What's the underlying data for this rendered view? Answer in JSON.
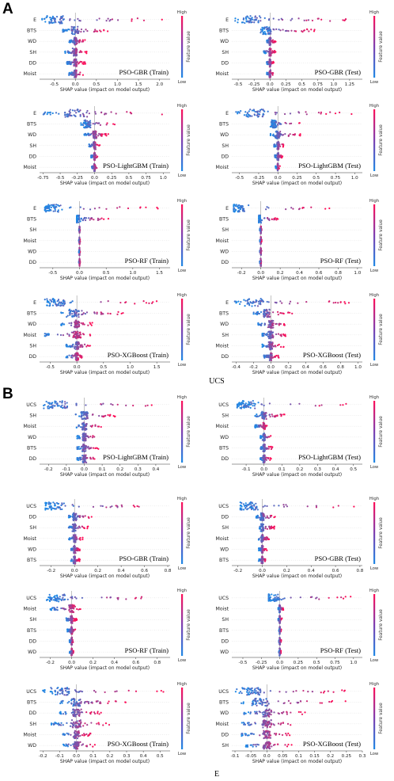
{
  "figure": {
    "sections": [
      {
        "letter": "A",
        "target_label": "UCS"
      },
      {
        "letter": "B",
        "target_label": "E"
      }
    ],
    "x_axis_label": "SHAP value (impact on model output)",
    "colorbar": {
      "high": "High",
      "low": "Low",
      "title": "Feature value"
    },
    "colors": {
      "low": "#1e88e5",
      "high": "#ff0d57",
      "zero_line": "#999999",
      "grid": "#dddddd"
    }
  },
  "chart_data": [
    {
      "type": "scatter",
      "title": "PSO-GBR (Train)",
      "features": [
        "E",
        "BTS",
        "WD",
        "SH",
        "DD",
        "Moist"
      ],
      "xticks": [
        -0.5,
        0.0,
        0.5,
        1.0,
        1.5,
        2.0
      ],
      "xlim": [
        -0.85,
        2.25
      ],
      "series": [
        {
          "min": -0.8,
          "max": 2.1,
          "mode": -0.5
        },
        {
          "min": -0.3,
          "max": 0.8,
          "mode": 0.0
        },
        {
          "min": -0.15,
          "max": 0.25,
          "mode": 0.0
        },
        {
          "min": -0.25,
          "max": 0.3,
          "mode": 0.0
        },
        {
          "min": -0.2,
          "max": 0.25,
          "mode": 0.0
        },
        {
          "min": -0.15,
          "max": 0.2,
          "mode": 0.0
        }
      ]
    },
    {
      "type": "scatter",
      "title": "PSO-GBR (Test)",
      "features": [
        "E",
        "BTS",
        "WD",
        "SH",
        "DD",
        "Moist"
      ],
      "xticks": [
        -0.5,
        -0.25,
        0.0,
        0.25,
        0.5,
        0.75,
        1.0,
        1.25
      ],
      "xlim": [
        -0.6,
        1.45
      ],
      "series": [
        {
          "min": -0.55,
          "max": 1.35,
          "mode": -0.3
        },
        {
          "min": -0.15,
          "max": 0.7,
          "mode": -0.05
        },
        {
          "min": -0.05,
          "max": 0.1,
          "mode": 0.0
        },
        {
          "min": -0.1,
          "max": 0.1,
          "mode": 0.0
        },
        {
          "min": -0.05,
          "max": 0.06,
          "mode": 0.0
        },
        {
          "min": -0.05,
          "max": 0.06,
          "mode": 0.0
        }
      ]
    },
    {
      "type": "scatter",
      "title": "PSO-LightGBM (Train)",
      "features": [
        "E",
        "BTS",
        "WD",
        "SH",
        "DD",
        "Moist"
      ],
      "xticks": [
        -0.75,
        -0.5,
        -0.25,
        0.0,
        0.25,
        0.5,
        0.75,
        1.0
      ],
      "xlim": [
        -0.8,
        1.1
      ],
      "series": [
        {
          "min": -0.75,
          "max": 1.05,
          "mode": -0.3
        },
        {
          "min": -0.2,
          "max": 0.35,
          "mode": -0.1
        },
        {
          "min": -0.15,
          "max": 0.2,
          "mode": 0.0
        },
        {
          "min": -0.08,
          "max": 0.08,
          "mode": 0.0
        },
        {
          "min": -0.05,
          "max": 0.05,
          "mode": 0.0
        },
        {
          "min": -0.04,
          "max": 0.04,
          "mode": 0.0
        }
      ]
    },
    {
      "type": "scatter",
      "title": "PSO-LightGBM (Test)",
      "features": [
        "E",
        "BTS",
        "WD",
        "SH",
        "DD",
        "Moist"
      ],
      "xticks": [
        -0.5,
        -0.25,
        0.0,
        0.25,
        0.5,
        0.75,
        1.0
      ],
      "xlim": [
        -0.6,
        1.1
      ],
      "series": [
        {
          "min": -0.55,
          "max": 1.05,
          "mode": -0.3
        },
        {
          "min": -0.1,
          "max": 0.3,
          "mode": -0.05
        },
        {
          "min": -0.1,
          "max": 0.3,
          "mode": 0.0
        },
        {
          "min": -0.05,
          "max": 0.08,
          "mode": 0.0
        },
        {
          "min": -0.04,
          "max": 0.06,
          "mode": 0.0
        },
        {
          "min": -0.03,
          "max": 0.03,
          "mode": 0.0
        }
      ]
    },
    {
      "type": "scatter",
      "title": "PSO-RF (Train)",
      "features": [
        "E",
        "BTS",
        "SH",
        "Moist",
        "WD",
        "DD"
      ],
      "xticks": [
        -0.5,
        0.0,
        0.5,
        1.0,
        1.5
      ],
      "xlim": [
        -0.75,
        1.7
      ],
      "series": [
        {
          "min": -0.65,
          "max": 1.6,
          "mode": -0.5
        },
        {
          "min": -0.05,
          "max": 0.55,
          "mode": -0.05
        },
        {
          "min": -0.01,
          "max": 0.01,
          "mode": 0.0
        },
        {
          "min": -0.01,
          "max": 0.01,
          "mode": 0.0
        },
        {
          "min": -0.01,
          "max": 0.01,
          "mode": 0.0
        },
        {
          "min": -0.01,
          "max": 0.01,
          "mode": 0.0
        }
      ]
    },
    {
      "type": "scatter",
      "title": "PSO-RF (Test)",
      "features": [
        "E",
        "BTS",
        "SH",
        "Moist",
        "WD",
        "DD"
      ],
      "xticks": [
        -0.2,
        0.0,
        0.2,
        0.4,
        0.6,
        0.8,
        1.0
      ],
      "xlim": [
        -0.3,
        1.05
      ],
      "series": [
        {
          "min": -0.28,
          "max": 0.75,
          "mode": -0.25
        },
        {
          "min": -0.02,
          "max": 0.18,
          "mode": -0.02
        },
        {
          "min": -0.01,
          "max": 0.01,
          "mode": 0.0
        },
        {
          "min": -0.01,
          "max": 0.01,
          "mode": 0.0
        },
        {
          "min": -0.01,
          "max": 0.01,
          "mode": 0.0
        },
        {
          "min": -0.01,
          "max": 0.01,
          "mode": 0.0
        }
      ]
    },
    {
      "type": "scatter",
      "title": "PSO-XGBoost (Train)",
      "features": [
        "E",
        "BTS",
        "WD",
        "Moist",
        "SH",
        "DD"
      ],
      "xticks": [
        -0.5,
        0.0,
        0.5,
        1.0,
        1.5
      ],
      "xlim": [
        -0.7,
        1.75
      ],
      "series": [
        {
          "min": -0.6,
          "max": 1.65,
          "mode": -0.4
        },
        {
          "min": -0.3,
          "max": 0.9,
          "mode": -0.05
        },
        {
          "min": -0.3,
          "max": 0.3,
          "mode": 0.0
        },
        {
          "min": -0.6,
          "max": 0.35,
          "mode": 0.0
        },
        {
          "min": -0.2,
          "max": 0.3,
          "mode": 0.0
        },
        {
          "min": -0.2,
          "max": 0.15,
          "mode": 0.0
        }
      ]
    },
    {
      "type": "scatter",
      "title": "PSO-XGBoost (Test)",
      "features": [
        "E",
        "BTS",
        "WD",
        "SH",
        "Moist",
        "DD"
      ],
      "xticks": [
        -0.4,
        -0.2,
        0.0,
        0.2,
        0.4,
        0.6,
        0.8,
        1.0
      ],
      "xlim": [
        -0.45,
        1.05
      ],
      "series": [
        {
          "min": -0.42,
          "max": 1.0,
          "mode": -0.2
        },
        {
          "min": -0.2,
          "max": 0.25,
          "mode": -0.05
        },
        {
          "min": -0.15,
          "max": 0.2,
          "mode": 0.0
        },
        {
          "min": -0.1,
          "max": 0.2,
          "mode": 0.0
        },
        {
          "min": -0.1,
          "max": 0.15,
          "mode": 0.0
        },
        {
          "min": -0.08,
          "max": 0.1,
          "mode": 0.0
        }
      ]
    },
    {
      "type": "scatter",
      "title": "PSO-LightGBM (Train)",
      "features": [
        "UCS",
        "SH",
        "Moist",
        "WD",
        "BTS",
        "DD"
      ],
      "xticks": [
        -0.2,
        -0.1,
        0.0,
        0.1,
        0.2,
        0.3,
        0.4
      ],
      "xlim": [
        -0.25,
        0.48
      ],
      "series": [
        {
          "min": -0.24,
          "max": 0.45,
          "mode": -0.15
        },
        {
          "min": -0.05,
          "max": 0.18,
          "mode": 0.0
        },
        {
          "min": -0.05,
          "max": 0.1,
          "mode": 0.0
        },
        {
          "min": -0.04,
          "max": 0.08,
          "mode": 0.0
        },
        {
          "min": -0.04,
          "max": 0.08,
          "mode": 0.0
        },
        {
          "min": -0.04,
          "max": 0.07,
          "mode": 0.0
        }
      ]
    },
    {
      "type": "scatter",
      "title": "PSO-LightGBM (Test)",
      "features": [
        "UCS",
        "SH",
        "Moist",
        "WD",
        "BTS",
        "DD"
      ],
      "xticks": [
        -0.1,
        0.0,
        0.1,
        0.2,
        0.3,
        0.4,
        0.5
      ],
      "xlim": [
        -0.18,
        0.55
      ],
      "series": [
        {
          "min": -0.15,
          "max": 0.52,
          "mode": -0.1
        },
        {
          "min": -0.05,
          "max": 0.12,
          "mode": 0.0
        },
        {
          "min": -0.05,
          "max": 0.02,
          "mode": 0.0
        },
        {
          "min": -0.02,
          "max": 0.05,
          "mode": 0.0
        },
        {
          "min": -0.02,
          "max": 0.05,
          "mode": 0.0
        },
        {
          "min": -0.02,
          "max": 0.04,
          "mode": 0.0
        }
      ]
    },
    {
      "type": "scatter",
      "title": "PSO-GBR (Train)",
      "features": [
        "UCS",
        "DD",
        "SH",
        "Moist",
        "WD",
        "BTS"
      ],
      "xticks": [
        -0.2,
        0.0,
        0.2,
        0.4,
        0.6,
        0.8
      ],
      "xlim": [
        -0.3,
        0.82
      ],
      "series": [
        {
          "min": -0.25,
          "max": 0.78,
          "mode": -0.18
        },
        {
          "min": -0.05,
          "max": 0.15,
          "mode": 0.0
        },
        {
          "min": -0.05,
          "max": 0.12,
          "mode": 0.0
        },
        {
          "min": -0.05,
          "max": 0.08,
          "mode": 0.0
        },
        {
          "min": -0.03,
          "max": 0.05,
          "mode": 0.0
        },
        {
          "min": -0.03,
          "max": 0.05,
          "mode": 0.0
        }
      ]
    },
    {
      "type": "scatter",
      "title": "PSO-GBR (Test)",
      "features": [
        "UCS",
        "DD",
        "SH",
        "Moist",
        "WD",
        "BTS"
      ],
      "xticks": [
        -0.2,
        0.0,
        0.2,
        0.4,
        0.6,
        0.8
      ],
      "xlim": [
        -0.25,
        0.82
      ],
      "series": [
        {
          "min": -0.18,
          "max": 0.78,
          "mode": -0.12
        },
        {
          "min": -0.05,
          "max": 0.12,
          "mode": 0.0
        },
        {
          "min": -0.03,
          "max": 0.1,
          "mode": 0.0
        },
        {
          "min": -0.03,
          "max": 0.06,
          "mode": 0.0
        },
        {
          "min": -0.03,
          "max": 0.04,
          "mode": 0.0
        },
        {
          "min": -0.03,
          "max": 0.04,
          "mode": 0.0
        }
      ]
    },
    {
      "type": "scatter",
      "title": "PSO-RF (Train)",
      "features": [
        "UCS",
        "Moist",
        "SH",
        "BTS",
        "DD",
        "WD"
      ],
      "xticks": [
        -0.2,
        0.0,
        0.2,
        0.4,
        0.6,
        0.8
      ],
      "xlim": [
        -0.3,
        0.92
      ],
      "series": [
        {
          "min": -0.25,
          "max": 0.88,
          "mode": -0.15
        },
        {
          "min": -0.2,
          "max": 0.1,
          "mode": 0.0
        },
        {
          "min": -0.05,
          "max": 0.05,
          "mode": 0.0
        },
        {
          "min": -0.04,
          "max": 0.04,
          "mode": 0.0
        },
        {
          "min": -0.02,
          "max": 0.02,
          "mode": 0.0
        },
        {
          "min": -0.02,
          "max": 0.02,
          "mode": 0.0
        }
      ]
    },
    {
      "type": "scatter",
      "title": "PSO-RF (Test)",
      "features": [
        "UCS",
        "Moist",
        "SH",
        "BTS",
        "DD",
        "WD"
      ],
      "xticks": [
        -0.5,
        -0.25,
        0.0,
        0.25,
        0.5,
        0.75,
        1.0
      ],
      "xlim": [
        -0.65,
        1.12
      ],
      "series": [
        {
          "min": -0.15,
          "max": 1.05,
          "mode": -0.1
        },
        {
          "min": -0.02,
          "max": 0.05,
          "mode": 0.0
        },
        {
          "min": -0.02,
          "max": 0.03,
          "mode": 0.0
        },
        {
          "min": -0.01,
          "max": 0.02,
          "mode": 0.0
        },
        {
          "min": -0.01,
          "max": 0.02,
          "mode": 0.0
        },
        {
          "min": -0.01,
          "max": 0.02,
          "mode": 0.0
        }
      ]
    },
    {
      "type": "scatter",
      "title": "PSO-XGBoost (Train)",
      "features": [
        "UCS",
        "BTS",
        "DD",
        "SH",
        "Moist",
        "WD"
      ],
      "xticks": [
        -0.2,
        -0.1,
        0.0,
        0.1,
        0.2,
        0.3,
        0.4,
        0.5
      ],
      "xlim": [
        -0.22,
        0.56
      ],
      "series": [
        {
          "min": -0.2,
          "max": 0.52,
          "mode": -0.1
        },
        {
          "min": -0.1,
          "max": 0.3,
          "mode": 0.0
        },
        {
          "min": -0.1,
          "max": 0.15,
          "mode": 0.0
        },
        {
          "min": -0.15,
          "max": 0.2,
          "mode": 0.0
        },
        {
          "min": -0.08,
          "max": 0.1,
          "mode": 0.0
        },
        {
          "min": -0.08,
          "max": 0.12,
          "mode": 0.0
        }
      ]
    },
    {
      "type": "scatter",
      "title": "PSO-XGBoost (Test)",
      "features": [
        "UCS",
        "BTS",
        "WD",
        "Moist",
        "DD",
        "SH"
      ],
      "xticks": [
        -0.1,
        -0.05,
        0.0,
        0.05,
        0.1,
        0.15,
        0.2,
        0.25,
        0.3
      ],
      "xlim": [
        -0.11,
        0.3
      ],
      "series": [
        {
          "min": -0.1,
          "max": 0.28,
          "mode": -0.05
        },
        {
          "min": -0.08,
          "max": 0.25,
          "mode": -0.02
        },
        {
          "min": -0.08,
          "max": 0.12,
          "mode": 0.0
        },
        {
          "min": -0.08,
          "max": 0.1,
          "mode": 0.0
        },
        {
          "min": -0.08,
          "max": 0.08,
          "mode": 0.0
        },
        {
          "min": -0.07,
          "max": 0.08,
          "mode": 0.0
        }
      ]
    }
  ]
}
